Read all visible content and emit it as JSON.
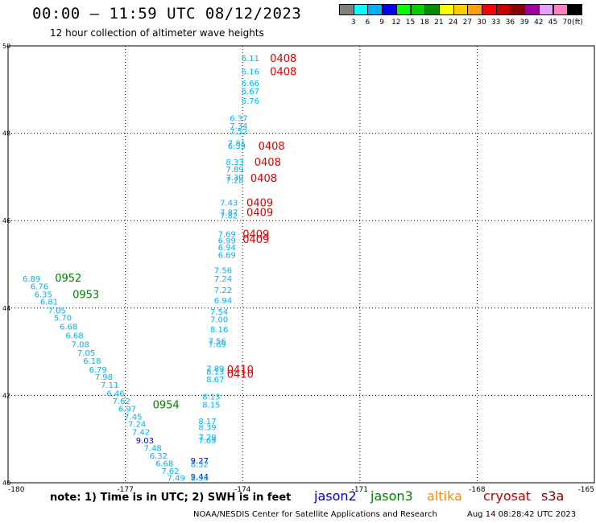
{
  "header": {
    "title": "00:00 – 11:59 UTC 08/12/2023",
    "subtitle": "12 hour collection of altimeter wave heights"
  },
  "colorbar": {
    "colors": [
      "#808080",
      "#00ffff",
      "#00b0ff",
      "#0000ff",
      "#00ff00",
      "#00d000",
      "#008c00",
      "#ffff00",
      "#ffcc00",
      "#ffa000",
      "#ff0000",
      "#c80000",
      "#8c0000",
      "#a000a0",
      "#e6a0ff",
      "#ff80c0",
      "#000000"
    ],
    "labels": [
      "3",
      "6",
      "9",
      "12",
      "15",
      "18",
      "21",
      "24",
      "27",
      "30",
      "33",
      "36",
      "39",
      "42",
      "45",
      "70"
    ],
    "unit": "(ft)"
  },
  "footer": {
    "note": "note: 1) Time is in UTC; 2) SWH is in feet",
    "credit": "NOAA/NESDIS Center for Satellite Applications and Research",
    "timestamp": "Aug 14 08:28:42 UTC 2023",
    "satellites": [
      {
        "name": "jason2",
        "color": "#0000c0"
      },
      {
        "name": "jason3",
        "color": "#008000"
      },
      {
        "name": "altika",
        "color": "#ff8c00"
      },
      {
        "name": "cryosat",
        "color": "#c00000"
      },
      {
        "name": "s3a",
        "color": "#800000"
      }
    ]
  },
  "chart_data": {
    "type": "scatter",
    "x_ticks": [
      "-180",
      "-177",
      "-174",
      "-171",
      "-168",
      "-165"
    ],
    "y_ticks": [
      "40",
      "42",
      "44",
      "46",
      "48",
      "50"
    ],
    "xlim": [
      -180,
      -165
    ],
    "ylim": [
      40,
      50
    ],
    "grid": true,
    "swh_points": [
      {
        "lon": -173.8,
        "lat": 49.72,
        "v": "6.11",
        "c": "#00b4f0"
      },
      {
        "lon": -173.8,
        "lat": 49.42,
        "v": "6.16",
        "c": "#00b4f0"
      },
      {
        "lon": -173.8,
        "lat": 49.15,
        "v": "6.66",
        "c": "#00b4f0"
      },
      {
        "lon": -173.8,
        "lat": 48.97,
        "v": "6.67",
        "c": "#00b4f0"
      },
      {
        "lon": -173.8,
        "lat": 48.75,
        "v": "6.76",
        "c": "#00b4f0"
      },
      {
        "lon": -174.1,
        "lat": 48.35,
        "v": "6.37",
        "c": "#00b4f0"
      },
      {
        "lon": -174.1,
        "lat": 48.18,
        "v": "7.34",
        "c": "#00b4f0"
      },
      {
        "lon": -174.1,
        "lat": 48.05,
        "v": "7.52",
        "c": "#00b4f0"
      },
      {
        "lon": -174.15,
        "lat": 47.78,
        "v": "7.81",
        "c": "#00b4f0"
      },
      {
        "lon": -174.15,
        "lat": 47.72,
        "v": "6.39",
        "c": "#00b4f0"
      },
      {
        "lon": -174.2,
        "lat": 47.35,
        "v": "8.33",
        "c": "#00b4f0"
      },
      {
        "lon": -174.2,
        "lat": 47.18,
        "v": "7.89",
        "c": "#00b4f0"
      },
      {
        "lon": -174.2,
        "lat": 47.0,
        "v": "7.30",
        "c": "#00b4f0"
      },
      {
        "lon": -174.2,
        "lat": 46.93,
        "v": "7.28",
        "c": "#00b4f0"
      },
      {
        "lon": -174.35,
        "lat": 46.42,
        "v": "7.43",
        "c": "#00b4f0"
      },
      {
        "lon": -174.35,
        "lat": 46.2,
        "v": "7.87",
        "c": "#00b4f0"
      },
      {
        "lon": -174.35,
        "lat": 46.12,
        "v": "7.82",
        "c": "#00b4f0"
      },
      {
        "lon": -174.4,
        "lat": 45.7,
        "v": "7.69",
        "c": "#00b4f0"
      },
      {
        "lon": -174.4,
        "lat": 45.55,
        "v": "6.99",
        "c": "#00b4f0"
      },
      {
        "lon": -174.4,
        "lat": 45.4,
        "v": "6.94",
        "c": "#00b4f0"
      },
      {
        "lon": -174.4,
        "lat": 45.22,
        "v": "6.69",
        "c": "#00b4f0"
      },
      {
        "lon": -174.5,
        "lat": 44.87,
        "v": "7.56",
        "c": "#00b4f0"
      },
      {
        "lon": -174.5,
        "lat": 44.68,
        "v": "7.24",
        "c": "#00b4f0"
      },
      {
        "lon": -174.5,
        "lat": 44.42,
        "v": "7.22",
        "c": "#00b4f0"
      },
      {
        "lon": -174.5,
        "lat": 44.18,
        "v": "6.94",
        "c": "#00b4f0"
      },
      {
        "lon": -174.6,
        "lat": 43.92,
        "v": "7.54",
        "c": "#00b4f0"
      },
      {
        "lon": -174.6,
        "lat": 43.75,
        "v": "7.00",
        "c": "#00b4f0"
      },
      {
        "lon": -174.6,
        "lat": 43.52,
        "v": "8.16",
        "c": "#00b4f0"
      },
      {
        "lon": -174.65,
        "lat": 43.25,
        "v": "7.56",
        "c": "#00b4f0"
      },
      {
        "lon": -174.65,
        "lat": 43.18,
        "v": "7.69",
        "c": "#00b4f0"
      },
      {
        "lon": -174.7,
        "lat": 42.62,
        "v": "7.89",
        "c": "#00b4f0"
      },
      {
        "lon": -174.7,
        "lat": 42.55,
        "v": "8.13",
        "c": "#00b4f0"
      },
      {
        "lon": -174.7,
        "lat": 42.38,
        "v": "8.67",
        "c": "#00b4f0"
      },
      {
        "lon": -174.8,
        "lat": 41.98,
        "v": "8.13",
        "c": "#00b4f0"
      },
      {
        "lon": -174.8,
        "lat": 41.8,
        "v": "8.15",
        "c": "#00b4f0"
      },
      {
        "lon": -174.9,
        "lat": 41.42,
        "v": "8.17",
        "c": "#00b4f0"
      },
      {
        "lon": -174.9,
        "lat": 41.28,
        "v": "8.39",
        "c": "#00b4f0"
      },
      {
        "lon": -174.9,
        "lat": 41.05,
        "v": "7.29",
        "c": "#00b4f0"
      },
      {
        "lon": -174.9,
        "lat": 40.98,
        "v": "7.69",
        "c": "#00b4f0"
      },
      {
        "lon": -175.1,
        "lat": 40.52,
        "v": "9.27",
        "c": "#0000c8"
      },
      {
        "lon": -175.1,
        "lat": 40.43,
        "v": "8.52",
        "c": "#00b4f0"
      },
      {
        "lon": -175.1,
        "lat": 40.15,
        "v": "9.44",
        "c": "#0000c8"
      },
      {
        "lon": -175.1,
        "lat": 40.12,
        "v": "8.96",
        "c": "#00b4f0"
      },
      {
        "lon": -179.4,
        "lat": 44.68,
        "v": "6.89",
        "c": "#00b4f0"
      },
      {
        "lon": -179.2,
        "lat": 44.5,
        "v": "6.76",
        "c": "#00b4f0"
      },
      {
        "lon": -179.1,
        "lat": 44.32,
        "v": "6.35",
        "c": "#00b4f0"
      },
      {
        "lon": -178.95,
        "lat": 44.15,
        "v": "6.81",
        "c": "#00b4f0"
      },
      {
        "lon": -178.75,
        "lat": 43.95,
        "v": "7.05",
        "c": "#00b4f0"
      },
      {
        "lon": -178.6,
        "lat": 43.78,
        "v": "5.70",
        "c": "#00b4f0"
      },
      {
        "lon": -178.45,
        "lat": 43.58,
        "v": "6.68",
        "c": "#00b4f0"
      },
      {
        "lon": -178.3,
        "lat": 43.38,
        "v": "6.68",
        "c": "#00b4f0"
      },
      {
        "lon": -178.15,
        "lat": 43.18,
        "v": "7.08",
        "c": "#00b4f0"
      },
      {
        "lon": -178.0,
        "lat": 42.98,
        "v": "7.05",
        "c": "#00b4f0"
      },
      {
        "lon": -177.85,
        "lat": 42.8,
        "v": "6.18",
        "c": "#00b4f0"
      },
      {
        "lon": -177.7,
        "lat": 42.6,
        "v": "6.79",
        "c": "#00b4f0"
      },
      {
        "lon": -177.55,
        "lat": 42.43,
        "v": "7.98",
        "c": "#00b4f0"
      },
      {
        "lon": -177.4,
        "lat": 42.25,
        "v": "7.11",
        "c": "#00b4f0"
      },
      {
        "lon": -177.25,
        "lat": 42.05,
        "v": "6.46",
        "c": "#00b4f0"
      },
      {
        "lon": -177.1,
        "lat": 41.88,
        "v": "7.62",
        "c": "#00b4f0"
      },
      {
        "lon": -176.95,
        "lat": 41.7,
        "v": "6.97",
        "c": "#00b4f0"
      },
      {
        "lon": -176.8,
        "lat": 41.52,
        "v": "7.45",
        "c": "#00b4f0"
      },
      {
        "lon": -176.7,
        "lat": 41.35,
        "v": "7.24",
        "c": "#00b4f0"
      },
      {
        "lon": -176.6,
        "lat": 41.17,
        "v": "7.42",
        "c": "#00b4f0"
      },
      {
        "lon": -176.5,
        "lat": 40.98,
        "v": "9.03",
        "c": "#0000c8"
      },
      {
        "lon": -176.3,
        "lat": 40.8,
        "v": "7.48",
        "c": "#00b4f0"
      },
      {
        "lon": -176.15,
        "lat": 40.63,
        "v": "6.32",
        "c": "#00b4f0"
      },
      {
        "lon": -176.0,
        "lat": 40.45,
        "v": "6.68",
        "c": "#00b4f0"
      },
      {
        "lon": -175.85,
        "lat": 40.28,
        "v": "7.62",
        "c": "#00b4f0"
      },
      {
        "lon": -175.7,
        "lat": 40.12,
        "v": "7.49",
        "c": "#00b4f0"
      }
    ],
    "time_labels": [
      {
        "lon": -173.3,
        "lat": 49.72,
        "t": "0408",
        "c": "#e00000"
      },
      {
        "lon": -173.3,
        "lat": 49.42,
        "t": "0408",
        "c": "#e00000"
      },
      {
        "lon": -173.6,
        "lat": 47.72,
        "t": "0408",
        "c": "#e00000"
      },
      {
        "lon": -173.7,
        "lat": 47.35,
        "t": "0408",
        "c": "#e00000"
      },
      {
        "lon": -173.8,
        "lat": 46.98,
        "t": "0408",
        "c": "#e00000"
      },
      {
        "lon": -173.9,
        "lat": 46.42,
        "t": "0409",
        "c": "#e00000"
      },
      {
        "lon": -173.9,
        "lat": 46.2,
        "t": "0409",
        "c": "#e00000"
      },
      {
        "lon": -174.0,
        "lat": 45.7,
        "t": "0409",
        "c": "#e00000"
      },
      {
        "lon": -174.0,
        "lat": 45.58,
        "t": "0409",
        "c": "#e00000"
      },
      {
        "lon": -174.4,
        "lat": 42.6,
        "t": "0410",
        "c": "#e00000"
      },
      {
        "lon": -174.4,
        "lat": 42.5,
        "t": "0410",
        "c": "#e00000"
      },
      {
        "lon": -178.8,
        "lat": 44.7,
        "t": "0952",
        "c": "#008000"
      },
      {
        "lon": -178.35,
        "lat": 44.32,
        "t": "0953",
        "c": "#008000"
      },
      {
        "lon": -176.3,
        "lat": 41.8,
        "t": "0954",
        "c": "#008000"
      }
    ]
  }
}
